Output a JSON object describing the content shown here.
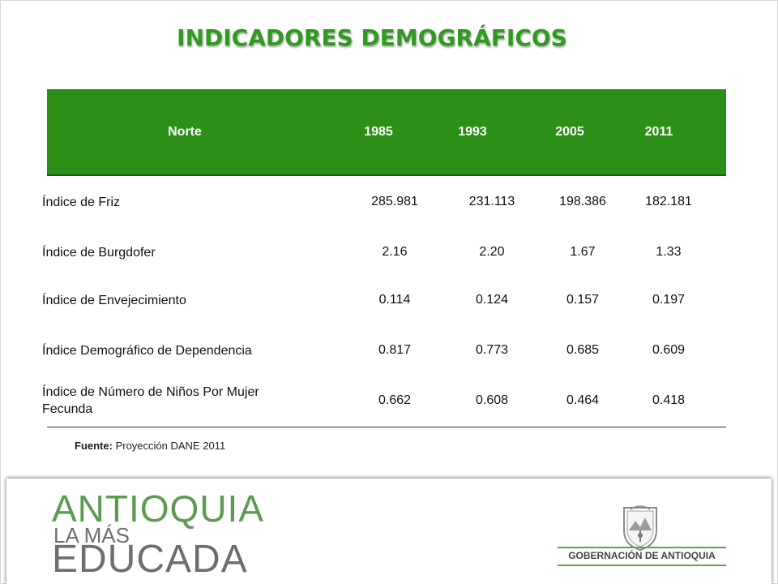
{
  "title": "INDICADORES DEMOGRÁFICOS",
  "table": {
    "headers": [
      "Norte",
      "1985",
      "1993",
      "2005",
      "2011"
    ],
    "rows": [
      {
        "label": "Índice de Friz",
        "values": [
          "285.981",
          "231.113",
          "198.386",
          "182.181"
        ]
      },
      {
        "label": "Índice de Burgdofer",
        "values": [
          "2.16",
          "2.20",
          "1.67",
          "1.33"
        ]
      },
      {
        "label": "Índice de Envejecimiento",
        "values": [
          "0.114",
          "0.124",
          "0.157",
          "0.197"
        ]
      },
      {
        "label": "Índice Demográfico de Dependencia",
        "values": [
          "0.817",
          "0.773",
          "0.685",
          "0.609"
        ]
      },
      {
        "label": "Índice de Número de Niños Por Mujer Fecunda",
        "values": [
          "0.662",
          "0.608",
          "0.464",
          "0.418"
        ]
      }
    ]
  },
  "source": {
    "label": "Fuente:",
    "text": " Proyección DANE 2011"
  },
  "footer": {
    "logo_line1": "ANTIOQUIA",
    "logo_line2": "LA MÁS",
    "logo_line3": "EDUCADA",
    "gov_name": "GOBERNACIÓN DE ANTIOQUIA"
  },
  "colors": {
    "title": "#2f9a1f",
    "header_bg": "#2c8f18",
    "logo_green": "#5e9a52",
    "logo_gray": "#6e6e6e"
  }
}
